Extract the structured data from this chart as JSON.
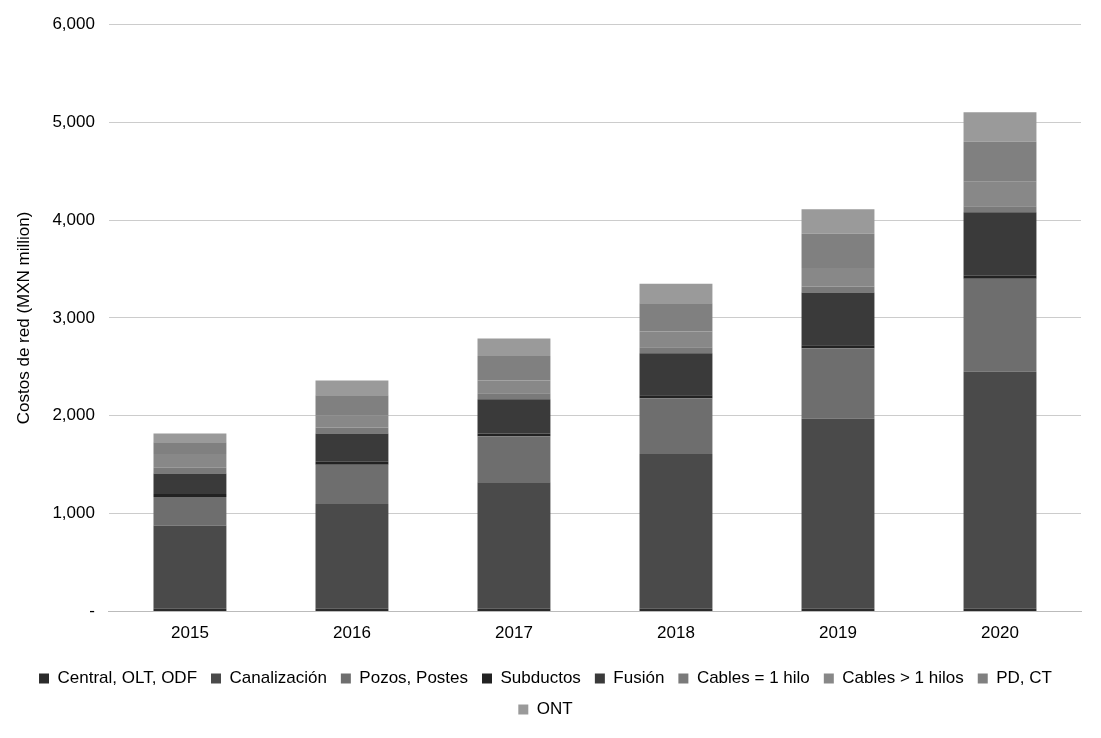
{
  "chart_data": {
    "type": "bar",
    "stacked": true,
    "ylabel": "Costos de red (MXN million)",
    "categories": [
      "2015",
      "2016",
      "2017",
      "2018",
      "2019",
      "2020"
    ],
    "series": [
      {
        "name": "Central, OLT, ODF",
        "color": "#2b2b2b",
        "values": [
          30,
          30,
          30,
          30,
          30,
          30
        ]
      },
      {
        "name": "Canalización",
        "color": "#4a4a4a",
        "values": [
          850,
          1070,
          1290,
          1580,
          1940,
          2420
        ]
      },
      {
        "name": "Pozos, Postes",
        "color": "#6e6e6e",
        "values": [
          290,
          400,
          470,
          570,
          720,
          950
        ]
      },
      {
        "name": "Subductos",
        "color": "#222222",
        "values": [
          30,
          30,
          30,
          30,
          30,
          30
        ]
      },
      {
        "name": "Fusión",
        "color": "#3a3a3a",
        "values": [
          210,
          290,
          350,
          430,
          540,
          650
        ]
      },
      {
        "name": "Cables = 1 hilo",
        "color": "#7a7a7a",
        "values": [
          60,
          60,
          60,
          60,
          60,
          60
        ]
      },
      {
        "name": "Cables > 1 hilos",
        "color": "#888888",
        "values": [
          140,
          120,
          130,
          160,
          190,
          250
        ]
      },
      {
        "name": "PD, CT",
        "color": "#808080",
        "values": [
          120,
          210,
          250,
          290,
          350,
          410
        ]
      },
      {
        "name": "ONT",
        "color": "#9a9a9a",
        "values": [
          90,
          150,
          180,
          200,
          250,
          300
        ]
      }
    ],
    "ylim": [
      0,
      6000
    ],
    "yticks": [
      {
        "value": 0,
        "label": "-"
      },
      {
        "value": 1000,
        "label": "1,000"
      },
      {
        "value": 2000,
        "label": "2,000"
      },
      {
        "value": 3000,
        "label": "3,000"
      },
      {
        "value": 4000,
        "label": "4,000"
      },
      {
        "value": 5000,
        "label": "5,000"
      },
      {
        "value": 6000,
        "label": "6,000"
      }
    ],
    "grid": "y",
    "legend": "bottom"
  }
}
